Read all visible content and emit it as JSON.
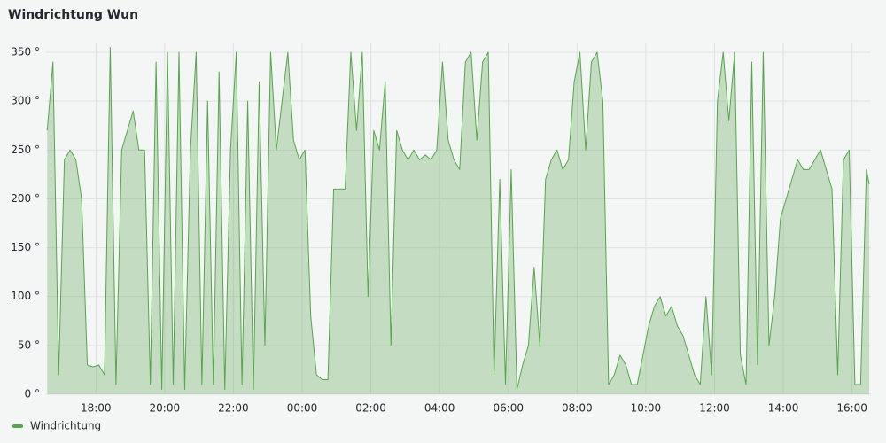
{
  "chart_data": {
    "type": "line",
    "title": "Windrichtung Wun",
    "x": [
      "16:35",
      "16:45",
      "16:55",
      "17:05",
      "17:15",
      "17:25",
      "17:35",
      "17:45",
      "17:55",
      "18:05",
      "18:15",
      "18:25",
      "18:35",
      "18:45",
      "18:55",
      "19:05",
      "19:15",
      "19:25",
      "19:35",
      "19:45",
      "19:55",
      "20:05",
      "20:15",
      "20:25",
      "20:35",
      "20:45",
      "20:55",
      "21:05",
      "21:15",
      "21:25",
      "21:35",
      "21:45",
      "21:55",
      "22:05",
      "22:15",
      "22:25",
      "22:35",
      "22:45",
      "22:55",
      "23:05",
      "23:15",
      "23:25",
      "23:35",
      "23:45",
      "23:55",
      "00:05",
      "00:15",
      "00:25",
      "00:35",
      "00:45",
      "00:55",
      "01:05",
      "01:15",
      "01:25",
      "01:35",
      "01:45",
      "01:55",
      "02:05",
      "02:15",
      "02:25",
      "02:35",
      "02:45",
      "02:55",
      "03:05",
      "03:15",
      "03:25",
      "03:35",
      "03:45",
      "03:55",
      "04:05",
      "04:15",
      "04:25",
      "04:35",
      "04:45",
      "04:55",
      "05:05",
      "05:15",
      "05:25",
      "05:35",
      "05:45",
      "05:55",
      "06:05",
      "06:15",
      "06:25",
      "06:35",
      "06:45",
      "06:55",
      "07:05",
      "07:15",
      "07:25",
      "07:35",
      "07:45",
      "07:55",
      "08:05",
      "08:15",
      "08:25",
      "08:35",
      "08:45",
      "08:55",
      "09:05",
      "09:15",
      "09:25",
      "09:35",
      "09:45",
      "09:55",
      "10:05",
      "10:15",
      "10:25",
      "10:35",
      "10:45",
      "10:55",
      "11:05",
      "11:15",
      "11:25",
      "11:35",
      "11:45",
      "11:55",
      "12:05",
      "12:15",
      "12:25",
      "12:35",
      "12:45",
      "12:55",
      "13:05",
      "13:15",
      "13:25",
      "13:35",
      "13:45",
      "13:55",
      "14:05",
      "14:15",
      "14:25",
      "14:35",
      "14:45",
      "14:55",
      "15:05",
      "15:15",
      "15:25",
      "15:35",
      "15:45",
      "15:55",
      "16:05",
      "16:15",
      "16:25",
      "16:30"
    ],
    "series": [
      {
        "name": "Windrichtung",
        "color": "#56a64b",
        "values": [
          270,
          340,
          20,
          240,
          250,
          240,
          200,
          30,
          28,
          30,
          20,
          355,
          10,
          250,
          270,
          290,
          250,
          250,
          10,
          340,
          5,
          350,
          10,
          350,
          5,
          250,
          350,
          10,
          300,
          10,
          330,
          5,
          250,
          350,
          10,
          300,
          5,
          320,
          50,
          350,
          250,
          300,
          350,
          260,
          240,
          250,
          80,
          20,
          15,
          15,
          210,
          210,
          210,
          350,
          270,
          350,
          100,
          270,
          250,
          320,
          50,
          270,
          250,
          240,
          250,
          240,
          245,
          240,
          250,
          340,
          260,
          240,
          230,
          340,
          350,
          260,
          340,
          350,
          20,
          220,
          10,
          230,
          5,
          30,
          50,
          130,
          50,
          220,
          240,
          250,
          230,
          240,
          320,
          350,
          250,
          340,
          350,
          300,
          10,
          20,
          40,
          30,
          10,
          10,
          40,
          70,
          90,
          100,
          80,
          90,
          70,
          60,
          40,
          20,
          10,
          100,
          20,
          300,
          350,
          280,
          350,
          40,
          10,
          340,
          30,
          350,
          50,
          100,
          180,
          200,
          220,
          240,
          230,
          230,
          240,
          250,
          230,
          210,
          20,
          240,
          250,
          10,
          10,
          230,
          215
        ]
      }
    ],
    "xlim": [
      "16:33",
      "16:33"
    ],
    "xticks": [
      "18:00",
      "20:00",
      "22:00",
      "00:00",
      "02:00",
      "04:00",
      "06:00",
      "08:00",
      "10:00",
      "12:00",
      "14:00",
      "16:00"
    ],
    "ylim": [
      0,
      360
    ],
    "yticks": [
      {
        "value": 0,
        "label": "0 °"
      },
      {
        "value": 50,
        "label": "50 °"
      },
      {
        "value": 100,
        "label": "100 °"
      },
      {
        "value": 150,
        "label": "150 °"
      },
      {
        "value": 200,
        "label": "200 °"
      },
      {
        "value": 250,
        "label": "250 °"
      },
      {
        "value": 300,
        "label": "300 °"
      },
      {
        "value": 350,
        "label": "350 °"
      }
    ],
    "grid": true,
    "legend": "bottom-left"
  }
}
